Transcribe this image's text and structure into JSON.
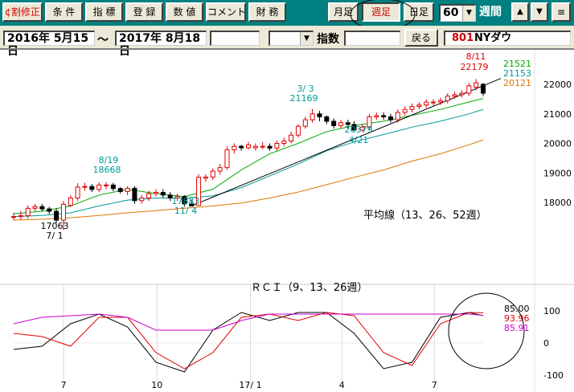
{
  "toolbar": {
    "buttons": [
      "割修正",
      "条 件",
      "指 標",
      "登 録",
      "数 値",
      "コメント",
      "財 務"
    ],
    "split_icon": "¢",
    "timeframes": [
      "月足",
      "週足",
      "日足"
    ],
    "active_timeframe": "週足",
    "period_value": "60",
    "period_unit": "週間",
    "nav_up": "▲",
    "nav_down": "▼",
    "menu": "≡"
  },
  "infobar": {
    "start_date": "2016年 5月15日",
    "tilde": "〜",
    "end_date": "2017年 8月18日",
    "index_label": "指数",
    "back_button": "戻る",
    "code": "801",
    "name": "NYダウ"
  },
  "price_chart": {
    "y_ticks": [
      "22000",
      "21000",
      "20000",
      "19000",
      "18000"
    ],
    "ma_values": [
      {
        "label": "21521",
        "color": "#00aa00"
      },
      {
        "label": "21153",
        "color": "#009999"
      },
      {
        "label": "20121",
        "color": "#dd7700"
      }
    ],
    "annotations": [
      {
        "text": "8/11",
        "color": "#e00000"
      },
      {
        "text": "22179",
        "color": "#e00000"
      },
      {
        "text": "3/ 3",
        "color": "#009999"
      },
      {
        "text": "21169",
        "color": "#009999"
      },
      {
        "text": "8/19",
        "color": "#009999"
      },
      {
        "text": "18668",
        "color": "#009999"
      },
      {
        "text": "20379",
        "color": "#009999"
      },
      {
        "text": "4/21",
        "color": "#009999"
      },
      {
        "text": "17883",
        "color": "#009999"
      },
      {
        "text": "11/ 4",
        "color": "#009999"
      },
      {
        "text": "17063",
        "color": "#000000"
      },
      {
        "text": "7/ 1",
        "color": "#000000"
      }
    ],
    "legend": "平均線（13、26、52週）"
  },
  "rci_chart": {
    "title": "ＲＣＩ（9、13、26週）",
    "y_ticks": [
      "100",
      "0",
      "-100"
    ],
    "values": [
      {
        "label": "85.00",
        "color": "#000000"
      },
      {
        "label": "93.96",
        "color": "#e00000"
      },
      {
        "label": "85.91",
        "color": "#cc00cc"
      }
    ]
  },
  "x_ticks": [
    "7",
    "10",
    "17/ 1",
    "4",
    "7"
  ],
  "chart_data": [
    {
      "type": "candlestick",
      "x": [
        "2016-05-13",
        "2016-05-20",
        "2016-05-27",
        "2016-06-03",
        "2016-06-10",
        "2016-06-17",
        "2016-06-24",
        "2016-07-01",
        "2016-07-08",
        "2016-07-15",
        "2016-07-22",
        "2016-07-29",
        "2016-08-05",
        "2016-08-12",
        "2016-08-19",
        "2016-08-26",
        "2016-09-02",
        "2016-09-09",
        "2016-09-16",
        "2016-09-23",
        "2016-09-30",
        "2016-10-07",
        "2016-10-14",
        "2016-10-21",
        "2016-10-28",
        "2016-11-04",
        "2016-11-11",
        "2016-11-18",
        "2016-11-25",
        "2016-12-02",
        "2016-12-09",
        "2016-12-16",
        "2016-12-23",
        "2016-12-30",
        "2017-01-06",
        "2017-01-13",
        "2017-01-20",
        "2017-01-27",
        "2017-02-03",
        "2017-02-10",
        "2017-02-17",
        "2017-02-24",
        "2017-03-03",
        "2017-03-10",
        "2017-03-17",
        "2017-03-24",
        "2017-03-31",
        "2017-04-07",
        "2017-04-13",
        "2017-04-21",
        "2017-04-28",
        "2017-05-05",
        "2017-05-12",
        "2017-05-19",
        "2017-05-26",
        "2017-06-02",
        "2017-06-09",
        "2017-06-16",
        "2017-06-23",
        "2017-06-30",
        "2017-07-07",
        "2017-07-14",
        "2017-07-21",
        "2017-07-28",
        "2017-08-04",
        "2017-08-11",
        "2017-08-18"
      ],
      "open": [
        17500,
        17520,
        17550,
        17800,
        17860,
        17780,
        17700,
        17400,
        17900,
        18150,
        18520,
        18540,
        18440,
        18590,
        18590,
        18470,
        18370,
        18480,
        18060,
        18150,
        18300,
        18340,
        18250,
        18150,
        18200,
        17950,
        17900,
        18820,
        18860,
        19060,
        19180,
        19780,
        19900,
        19850,
        19850,
        19900,
        19900,
        19840,
        20000,
        20080,
        20280,
        20580,
        20800,
        21000,
        20900,
        20750,
        20600,
        20700,
        20640,
        20450,
        20550,
        20900,
        20940,
        20900,
        20800,
        21050,
        21150,
        21250,
        21300,
        21400,
        21400,
        21450,
        21600,
        21650,
        21700,
        21900,
        22000
      ],
      "close": [
        17520,
        17550,
        17800,
        17860,
        17780,
        17700,
        17400,
        17940,
        18150,
        18520,
        18540,
        18440,
        18590,
        18590,
        18470,
        18370,
        18480,
        18060,
        18150,
        18300,
        18340,
        18250,
        18150,
        18200,
        17950,
        17880,
        18850,
        18860,
        19060,
        19180,
        19780,
        19900,
        19850,
        19950,
        19900,
        19900,
        19840,
        20000,
        20080,
        20280,
        20580,
        20800,
        21000,
        20900,
        20750,
        20600,
        20700,
        20640,
        20450,
        20550,
        20900,
        20940,
        20900,
        20800,
        21050,
        21150,
        21250,
        21300,
        21400,
        21400,
        21450,
        21600,
        21650,
        21700,
        21950,
        22050,
        21700
      ],
      "low": [
        17400,
        17420,
        17450,
        17700,
        17700,
        17600,
        17300,
        17063,
        17850,
        18050,
        18400,
        18350,
        18350,
        18450,
        18380,
        18300,
        18250,
        17950,
        17950,
        18050,
        18200,
        18150,
        18050,
        18050,
        17850,
        17883,
        17880,
        18700,
        18760,
        18950,
        19100,
        19650,
        19750,
        19800,
        19750,
        19800,
        19750,
        19750,
        19900,
        20000,
        20200,
        20500,
        20700,
        20750,
        20650,
        20500,
        20500,
        20500,
        20379,
        20400,
        20450,
        20800,
        20800,
        20700,
        20700,
        20950,
        21050,
        21150,
        21200,
        21250,
        21300,
        21350,
        21500,
        21550,
        21600,
        21800,
        21600
      ],
      "high": [
        17650,
        17700,
        17900,
        17950,
        17950,
        17850,
        17800,
        18050,
        18250,
        18650,
        18668,
        18620,
        18680,
        18690,
        18668,
        18520,
        18550,
        18550,
        18250,
        18400,
        18450,
        18450,
        18350,
        18300,
        18250,
        18100,
        18950,
        18950,
        19150,
        19300,
        19900,
        20000,
        19950,
        20050,
        20000,
        20050,
        20000,
        20100,
        20200,
        20400,
        20650,
        20900,
        21169,
        21100,
        20950,
        20850,
        20800,
        20800,
        20750,
        20650,
        21000,
        21050,
        21050,
        21000,
        21150,
        21250,
        21350,
        21400,
        21500,
        21500,
        21550,
        21700,
        21750,
        21800,
        22050,
        22179,
        22050
      ]
    },
    {
      "type": "line",
      "x": [
        "2016-05-13",
        "2016-06-10",
        "2016-07-08",
        "2016-08-05",
        "2016-09-02",
        "2016-09-30",
        "2016-10-28",
        "2016-11-25",
        "2016-12-23",
        "2017-01-20",
        "2017-02-17",
        "2017-03-17",
        "2017-04-13",
        "2017-05-12",
        "2017-06-09",
        "2017-07-07",
        "2017-08-04",
        "2017-08-18"
      ],
      "series": [
        {
          "name": "13",
          "values": [
            17620,
            17700,
            17880,
            18250,
            18440,
            18300,
            18200,
            18450,
            19100,
            19650,
            20000,
            20400,
            20600,
            20750,
            20950,
            21150,
            21400,
            21521
          ]
        },
        {
          "name": "26",
          "values": [
            17520,
            17560,
            17650,
            17880,
            18080,
            18150,
            18150,
            18220,
            18500,
            18900,
            19300,
            19750,
            20050,
            20300,
            20550,
            20750,
            21000,
            21153
          ]
        },
        {
          "name": "52",
          "values": [
            17400,
            17430,
            17480,
            17560,
            17650,
            17720,
            17800,
            17880,
            17980,
            18150,
            18350,
            18600,
            18850,
            19100,
            19400,
            19650,
            19950,
            20121
          ]
        }
      ]
    },
    {
      "type": "line",
      "x": [
        "2016-05-13",
        "2016-06-10",
        "2016-07-08",
        "2016-08-05",
        "2016-09-02",
        "2016-09-30",
        "2016-10-28",
        "2016-11-25",
        "2016-12-23",
        "2017-01-20",
        "2017-02-17",
        "2017-03-17",
        "2017-04-13",
        "2017-05-12",
        "2017-06-09",
        "2017-07-07",
        "2017-08-04",
        "2017-08-18"
      ],
      "series": [
        {
          "name": "9",
          "values": [
            -20,
            -10,
            60,
            90,
            50,
            -60,
            -90,
            40,
            95,
            70,
            95,
            95,
            30,
            -80,
            -60,
            80,
            95,
            85.0
          ]
        },
        {
          "name": "13",
          "values": [
            30,
            20,
            -10,
            80,
            80,
            -30,
            -80,
            -30,
            80,
            90,
            70,
            95,
            85,
            -30,
            -70,
            60,
            95,
            93.96
          ]
        },
        {
          "name": "26",
          "values": [
            60,
            80,
            85,
            90,
            80,
            40,
            40,
            40,
            70,
            90,
            90,
            90,
            90,
            90,
            90,
            90,
            90,
            85.91
          ]
        }
      ]
    }
  ]
}
